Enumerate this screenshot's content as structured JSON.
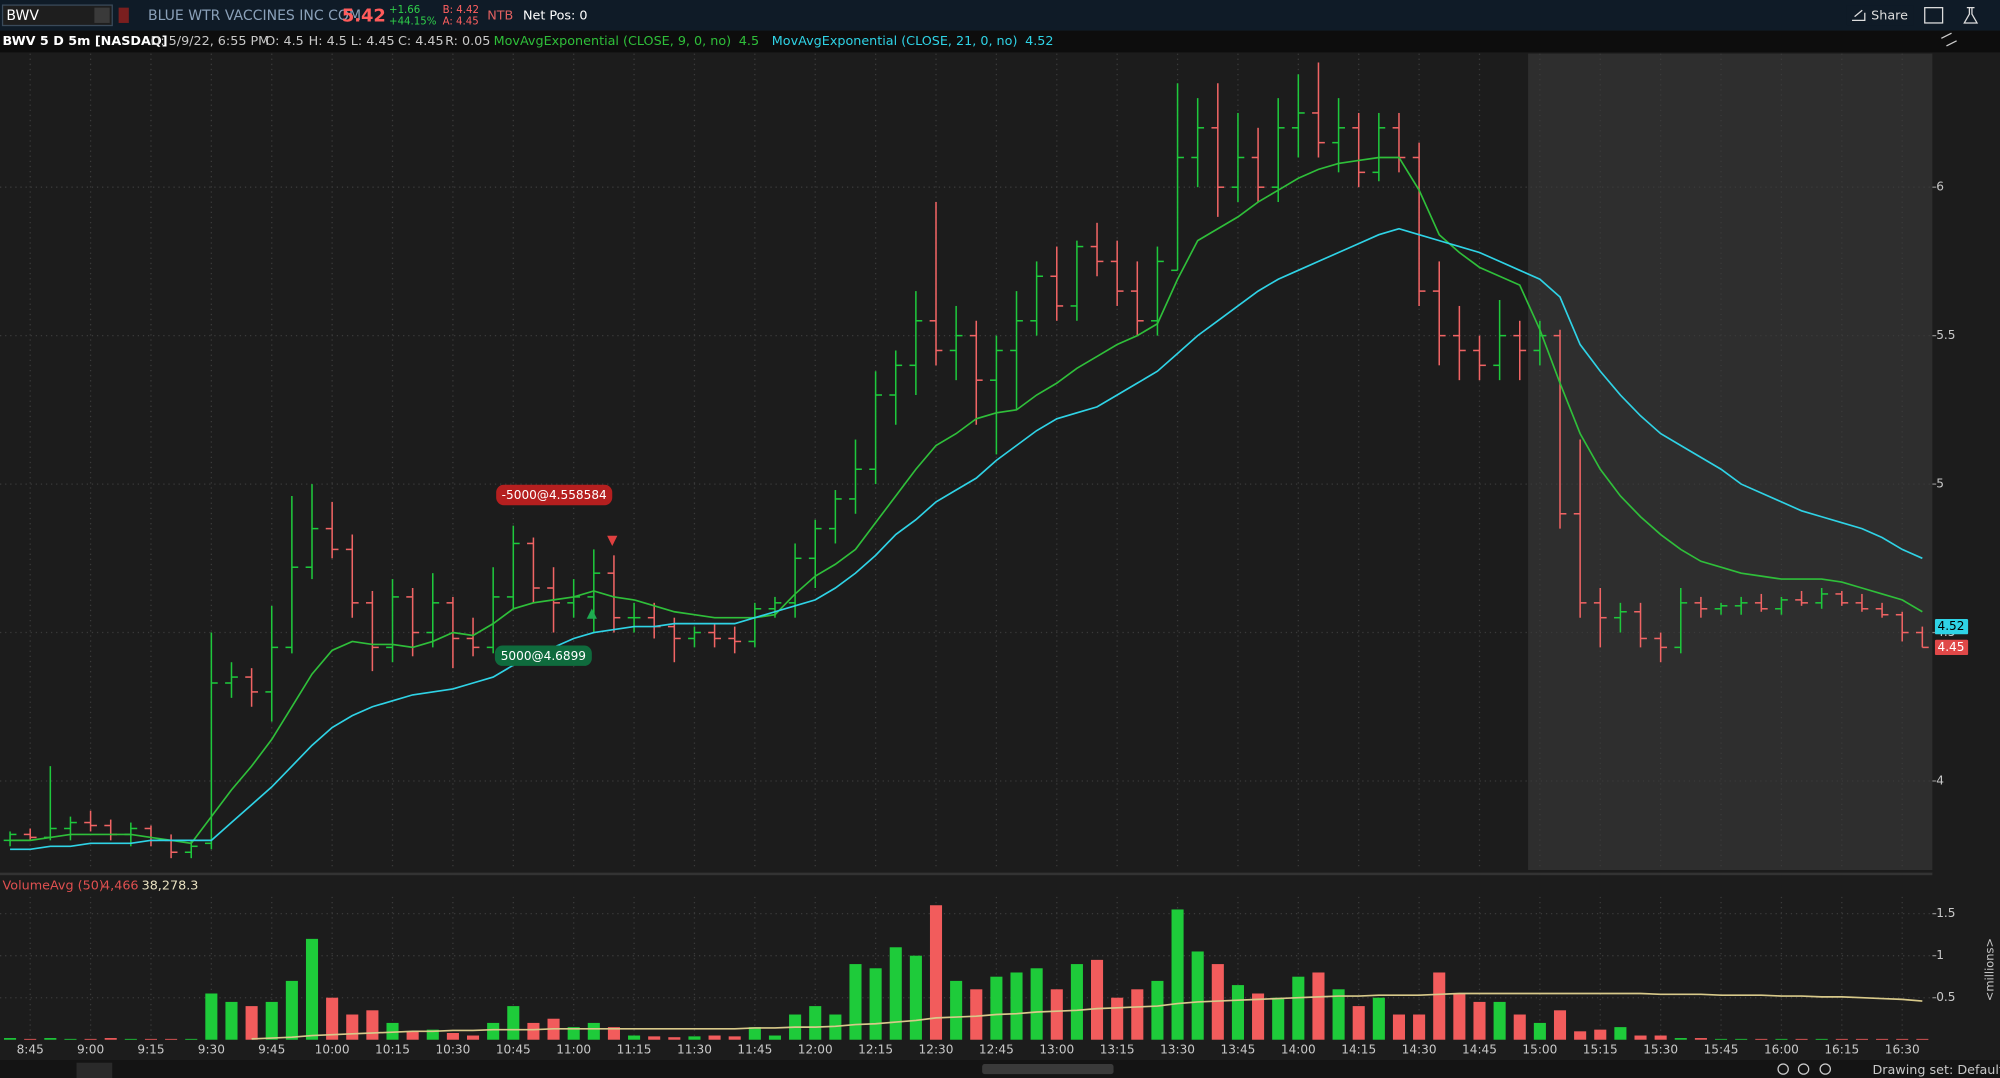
{
  "header": {
    "symbol": "BWV",
    "company": "BLUE WTR VACCINES INC COM",
    "last": "5.42",
    "change": "+1.66",
    "change_pct": "+44.15%",
    "bid": "B: 4.42",
    "ask": "A: 4.45",
    "ntb": "NTB",
    "net_pos": "Net Pos: 0",
    "share": "Share"
  },
  "study_bar": {
    "title": "BWV 5 D 5m [NASDAQ]",
    "date": "D: 5/9/22, 6:55 PM",
    "open": "O: 4.5",
    "high": "H: 4.5",
    "low": "L: 4.45",
    "close": "C: 4.45",
    "range": "R: 0.05"
  },
  "footer": {
    "drawing_set": "Drawing set: Default"
  },
  "chart_data": [
    {
      "type": "ohlc",
      "up_color": "#1ec83c",
      "down_color": "#f06464",
      "categories": [
        null,
        "8:45",
        null,
        null,
        "9:00",
        null,
        null,
        "9:15",
        null,
        null,
        "9:30",
        null,
        null,
        "9:45",
        null,
        null,
        "10:00",
        null,
        null,
        "10:15",
        null,
        null,
        "10:30",
        null,
        null,
        "10:45",
        null,
        null,
        "11:00",
        null,
        null,
        "11:15",
        null,
        null,
        "11:30",
        null,
        null,
        "11:45",
        null,
        null,
        "12:00",
        null,
        null,
        "12:15",
        null,
        null,
        "12:30",
        null,
        null,
        "12:45",
        null,
        null,
        "13:00",
        null,
        null,
        "13:15",
        null,
        null,
        "13:30",
        null,
        null,
        "13:45",
        null,
        null,
        "14:00",
        null,
        null,
        "14:15",
        null,
        null,
        "14:30",
        null,
        null,
        "14:45",
        null,
        null,
        "15:00",
        null,
        null,
        "15:15",
        null,
        null,
        "15:30",
        null,
        null,
        "15:45",
        null,
        null,
        "16:00",
        null,
        null,
        "16:15",
        null,
        null,
        "16:30",
        null
      ],
      "open": [
        3.8,
        3.82,
        3.81,
        3.84,
        3.86,
        3.85,
        3.82,
        3.84,
        3.8,
        3.76,
        3.79,
        4.33,
        4.35,
        4.3,
        4.45,
        4.72,
        4.85,
        4.78,
        4.6,
        4.45,
        4.62,
        4.5,
        4.6,
        4.48,
        4.45,
        4.62,
        4.8,
        4.65,
        4.6,
        4.62,
        4.7,
        4.55,
        4.55,
        4.52,
        4.48,
        4.5,
        4.48,
        4.47,
        4.58,
        4.6,
        4.75,
        4.85,
        4.95,
        5.05,
        5.3,
        5.4,
        5.55,
        5.45,
        5.5,
        5.35,
        5.45,
        5.55,
        5.7,
        5.6,
        5.8,
        5.75,
        5.65,
        5.55,
        5.72,
        6.1,
        6.2,
        6.0,
        6.1,
        6.0,
        6.2,
        6.25,
        6.15,
        6.2,
        6.05,
        6.2,
        6.1,
        5.65,
        5.5,
        5.45,
        5.4,
        5.5,
        5.45,
        5.5,
        4.9,
        4.6,
        4.55,
        4.57,
        4.48,
        4.45,
        4.6,
        4.58,
        4.59,
        4.6,
        4.58,
        4.61,
        4.6,
        4.63,
        4.6,
        4.58,
        4.56,
        4.5
      ],
      "high": [
        3.83,
        3.84,
        4.05,
        3.88,
        3.9,
        3.87,
        3.86,
        3.85,
        3.82,
        3.8,
        4.5,
        4.4,
        4.38,
        4.59,
        4.96,
        5.0,
        4.94,
        4.83,
        4.64,
        4.68,
        4.65,
        4.7,
        4.62,
        4.55,
        4.72,
        4.86,
        4.82,
        4.72,
        4.68,
        4.78,
        4.76,
        4.6,
        4.6,
        4.55,
        4.52,
        4.53,
        4.52,
        4.6,
        4.62,
        4.8,
        4.88,
        4.98,
        5.15,
        5.38,
        5.45,
        5.65,
        5.95,
        5.6,
        5.55,
        5.5,
        5.65,
        5.75,
        5.8,
        5.82,
        5.88,
        5.82,
        5.75,
        5.8,
        6.35,
        6.3,
        6.35,
        6.25,
        6.2,
        6.3,
        6.38,
        6.42,
        6.3,
        6.25,
        6.25,
        6.25,
        6.15,
        5.75,
        5.6,
        5.5,
        5.62,
        5.55,
        5.55,
        5.52,
        5.15,
        4.65,
        4.6,
        4.6,
        4.5,
        4.65,
        4.62,
        4.6,
        4.62,
        4.63,
        4.62,
        4.64,
        4.65,
        4.64,
        4.63,
        4.6,
        4.57,
        4.52
      ],
      "low": [
        3.78,
        3.8,
        3.8,
        3.8,
        3.83,
        3.8,
        3.78,
        3.78,
        3.74,
        3.74,
        3.77,
        4.28,
        4.25,
        4.2,
        4.43,
        4.68,
        4.75,
        4.55,
        4.37,
        4.4,
        4.42,
        4.45,
        4.38,
        4.42,
        4.43,
        4.58,
        4.6,
        4.5,
        4.55,
        4.5,
        4.5,
        4.5,
        4.48,
        4.4,
        4.45,
        4.45,
        4.43,
        4.45,
        4.55,
        4.55,
        4.65,
        4.8,
        4.9,
        5.0,
        5.2,
        5.3,
        5.4,
        5.35,
        5.2,
        5.1,
        5.25,
        5.5,
        5.55,
        5.55,
        5.7,
        5.6,
        5.5,
        5.5,
        5.72,
        6.0,
        5.9,
        5.95,
        5.95,
        5.95,
        6.1,
        6.1,
        6.05,
        6.0,
        6.02,
        6.05,
        5.6,
        5.4,
        5.35,
        5.35,
        5.35,
        5.35,
        5.4,
        4.85,
        4.55,
        4.45,
        4.5,
        4.45,
        4.4,
        4.43,
        4.55,
        4.56,
        4.56,
        4.57,
        4.56,
        4.59,
        4.58,
        4.59,
        4.57,
        4.55,
        4.47,
        4.45
      ],
      "close": [
        3.82,
        3.81,
        3.84,
        3.86,
        3.85,
        3.82,
        3.84,
        3.8,
        3.76,
        3.78,
        4.33,
        4.35,
        4.3,
        4.45,
        4.72,
        4.85,
        4.78,
        4.6,
        4.45,
        4.62,
        4.5,
        4.6,
        4.48,
        4.45,
        4.62,
        4.8,
        4.65,
        4.6,
        4.62,
        4.7,
        4.55,
        4.55,
        4.52,
        4.48,
        4.5,
        4.48,
        4.47,
        4.58,
        4.6,
        4.75,
        4.85,
        4.95,
        5.05,
        5.3,
        5.4,
        5.55,
        5.45,
        5.5,
        5.35,
        5.45,
        5.55,
        5.7,
        5.6,
        5.8,
        5.75,
        5.65,
        5.55,
        5.75,
        6.1,
        6.2,
        6.0,
        6.1,
        6.0,
        6.2,
        6.25,
        6.15,
        6.2,
        6.05,
        6.2,
        6.1,
        5.65,
        5.5,
        5.45,
        5.4,
        5.5,
        5.45,
        5.5,
        4.9,
        4.6,
        4.55,
        4.57,
        4.48,
        4.45,
        4.6,
        4.58,
        4.59,
        4.6,
        4.58,
        4.61,
        4.6,
        4.63,
        4.6,
        4.58,
        4.56,
        4.5,
        4.45
      ],
      "series": [
        {
          "name": "MovAvgExponential (CLOSE, 9, 0, no)",
          "color": "#2fbf3a",
          "cursor_value": 4.5,
          "values": [
            3.8,
            3.8,
            3.81,
            3.82,
            3.82,
            3.82,
            3.82,
            3.81,
            3.8,
            3.79,
            3.88,
            3.97,
            4.05,
            4.14,
            4.25,
            4.36,
            4.44,
            4.47,
            4.46,
            4.46,
            4.45,
            4.47,
            4.5,
            4.49,
            4.53,
            4.58,
            4.6,
            4.61,
            4.62,
            4.64,
            4.62,
            4.61,
            4.59,
            4.57,
            4.56,
            4.55,
            4.55,
            4.55,
            4.56,
            4.63,
            4.69,
            4.73,
            4.78,
            4.87,
            4.96,
            5.05,
            5.13,
            5.17,
            5.22,
            5.24,
            5.25,
            5.3,
            5.34,
            5.39,
            5.43,
            5.47,
            5.5,
            5.54,
            5.69,
            5.82,
            5.86,
            5.9,
            5.95,
            5.99,
            6.03,
            6.06,
            6.08,
            6.09,
            6.1,
            6.1,
            5.99,
            5.84,
            5.78,
            5.73,
            5.7,
            5.67,
            5.52,
            5.34,
            5.17,
            5.05,
            4.96,
            4.89,
            4.83,
            4.78,
            4.74,
            4.72,
            4.7,
            4.69,
            4.68,
            4.68,
            4.68,
            4.67,
            4.65,
            4.63,
            4.61,
            4.57
          ]
        },
        {
          "name": "MovAvgExponential (CLOSE, 21, 0, no)",
          "color": "#2fd3e6",
          "cursor_value": 4.52,
          "values": [
            3.77,
            3.77,
            3.78,
            3.78,
            3.79,
            3.79,
            3.79,
            3.8,
            3.8,
            3.8,
            3.8,
            3.86,
            3.92,
            3.98,
            4.05,
            4.12,
            4.18,
            4.22,
            4.25,
            4.27,
            4.29,
            4.3,
            4.31,
            4.33,
            4.35,
            4.39,
            4.42,
            4.45,
            4.48,
            4.5,
            4.51,
            4.52,
            4.52,
            4.53,
            4.53,
            4.53,
            4.53,
            4.55,
            4.57,
            4.59,
            4.61,
            4.65,
            4.7,
            4.76,
            4.83,
            4.88,
            4.94,
            4.98,
            5.02,
            5.08,
            5.13,
            5.18,
            5.22,
            5.24,
            5.26,
            5.3,
            5.34,
            5.38,
            5.44,
            5.5,
            5.55,
            5.6,
            5.65,
            5.69,
            5.72,
            5.75,
            5.78,
            5.81,
            5.84,
            5.86,
            5.84,
            5.82,
            5.8,
            5.78,
            5.75,
            5.72,
            5.69,
            5.63,
            5.47,
            5.38,
            5.3,
            5.23,
            5.17,
            5.13,
            5.09,
            5.05,
            5.0,
            4.97,
            4.94,
            4.91,
            4.89,
            4.87,
            4.85,
            4.82,
            4.78,
            4.75
          ]
        }
      ],
      "price_tags": [
        {
          "value": 4.52,
          "color": "#2fd3e6"
        },
        {
          "value": 4.45,
          "color": "#e04848"
        }
      ],
      "orders": [
        {
          "label": "-5000@4.558584",
          "side": "sell"
        },
        {
          "label": "5000@4.6899",
          "side": "buy"
        }
      ],
      "ylim": [
        3.7,
        6.45
      ],
      "yticks": [
        4,
        4.5,
        5,
        5.5,
        6
      ],
      "grid": true
    },
    {
      "type": "bar",
      "up_color": "#1ecb3a",
      "down_color": "#f25c5c",
      "y_label": "<millions>",
      "readouts": [
        "4,466",
        "38,278.3"
      ],
      "values": [
        0.02,
        0.01,
        0.02,
        0.01,
        0.01,
        0.02,
        0.01,
        0.01,
        0.01,
        0.01,
        0.55,
        0.45,
        0.4,
        0.45,
        0.7,
        1.2,
        0.5,
        0.3,
        0.35,
        0.2,
        0.1,
        0.12,
        0.08,
        0.05,
        0.2,
        0.4,
        0.2,
        0.25,
        0.15,
        0.2,
        0.15,
        0.05,
        0.04,
        0.03,
        0.04,
        0.05,
        0.04,
        0.15,
        0.05,
        0.3,
        0.4,
        0.3,
        0.9,
        0.85,
        1.1,
        1.0,
        1.6,
        0.7,
        0.6,
        0.75,
        0.8,
        0.85,
        0.6,
        0.9,
        0.95,
        0.5,
        0.6,
        0.7,
        1.55,
        1.05,
        0.9,
        0.65,
        0.55,
        0.5,
        0.75,
        0.8,
        0.6,
        0.4,
        0.5,
        0.3,
        0.3,
        0.8,
        0.55,
        0.45,
        0.45,
        0.3,
        0.2,
        0.35,
        0.1,
        0.12,
        0.15,
        0.05,
        0.05,
        0.02,
        0.02,
        0.01,
        0.01,
        0.01,
        0.01,
        0.01,
        0.01,
        0.01,
        0.01,
        0.01,
        0.01,
        0.01
      ],
      "series": [
        {
          "name": "VolumeAvg (50)",
          "color": "#d8c98a",
          "values": [
            null,
            null,
            null,
            null,
            null,
            null,
            null,
            null,
            null,
            null,
            null,
            null,
            0.01,
            0.02,
            0.03,
            0.05,
            0.06,
            0.07,
            0.08,
            0.09,
            0.1,
            0.1,
            0.11,
            0.11,
            0.12,
            0.12,
            0.12,
            0.13,
            0.13,
            0.13,
            0.13,
            0.13,
            0.13,
            0.13,
            0.13,
            0.13,
            0.13,
            0.14,
            0.14,
            0.15,
            0.15,
            0.16,
            0.18,
            0.19,
            0.21,
            0.23,
            0.26,
            0.27,
            0.28,
            0.3,
            0.31,
            0.33,
            0.34,
            0.35,
            0.37,
            0.38,
            0.39,
            0.4,
            0.43,
            0.45,
            0.46,
            0.47,
            0.48,
            0.49,
            0.5,
            0.51,
            0.52,
            0.52,
            0.53,
            0.53,
            0.53,
            0.54,
            0.55,
            0.55,
            0.55,
            0.55,
            0.55,
            0.55,
            0.55,
            0.55,
            0.55,
            0.55,
            0.54,
            0.54,
            0.54,
            0.53,
            0.53,
            0.53,
            0.52,
            0.52,
            0.51,
            0.51,
            0.5,
            0.49,
            0.48,
            0.46
          ]
        }
      ],
      "ylim": [
        0,
        1.7
      ],
      "yticks": [
        0.5,
        1,
        1.5
      ],
      "grid": true
    }
  ]
}
